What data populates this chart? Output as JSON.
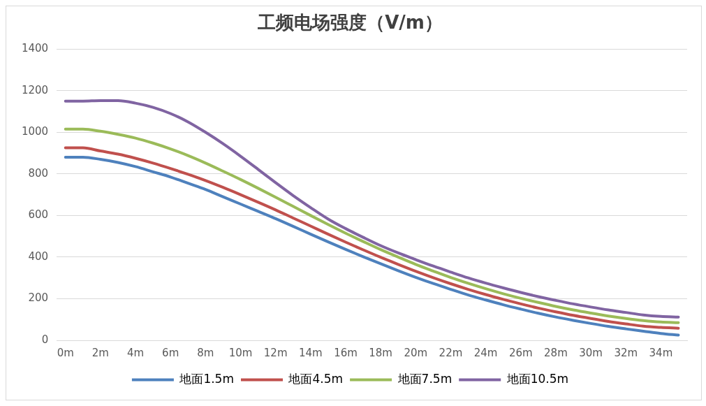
{
  "chart_data": {
    "type": "line",
    "title": "工频电场强度（V/m）",
    "categories": [
      "0m",
      null,
      "2m",
      null,
      "4m",
      null,
      "6m",
      null,
      "8m",
      null,
      "10m",
      null,
      "12m",
      null,
      "14m",
      null,
      "16m",
      null,
      "18m",
      null,
      "20m",
      null,
      "22m",
      null,
      "24m",
      null,
      "26m",
      null,
      "28m",
      null,
      "30m",
      null,
      "32m",
      null,
      "34m",
      null
    ],
    "series": [
      {
        "name": "地面1.5m",
        "color": "#4e81bd",
        "values": [
          880,
          880,
          870,
          855,
          835,
          810,
          785,
          755,
          725,
          690,
          655,
          620,
          585,
          548,
          510,
          473,
          437,
          402,
          368,
          335,
          303,
          273,
          245,
          218,
          194,
          171,
          150,
          130,
          112,
          96,
          81,
          67,
          55,
          44,
          33,
          25
        ]
      },
      {
        "name": "地面4.5m",
        "color": "#c0504d",
        "values": [
          925,
          925,
          910,
          895,
          875,
          852,
          826,
          798,
          768,
          735,
          700,
          664,
          627,
          588,
          549,
          510,
          472,
          435,
          399,
          365,
          332,
          301,
          272,
          245,
          220,
          197,
          175,
          155,
          137,
          120,
          105,
          91,
          79,
          68,
          62,
          58
        ]
      },
      {
        "name": "地面7.5m",
        "color": "#9bbb59",
        "values": [
          1015,
          1015,
          1005,
          990,
          972,
          948,
          920,
          888,
          852,
          813,
          773,
          731,
          688,
          644,
          600,
          557,
          515,
          475,
          436,
          400,
          365,
          333,
          302,
          274,
          248,
          224,
          202,
          182,
          163,
          146,
          131,
          117,
          105,
          95,
          88,
          85
        ]
      },
      {
        "name": "地面10.5m",
        "color": "#8064a2",
        "values": [
          1150,
          1150,
          1152,
          1152,
          1140,
          1120,
          1090,
          1050,
          1000,
          945,
          885,
          822,
          758,
          696,
          638,
          583,
          537,
          495,
          455,
          420,
          388,
          357,
          328,
          300,
          275,
          252,
          230,
          210,
          192,
          175,
          160,
          146,
          134,
          122,
          115,
          112
        ]
      }
    ],
    "ylim": [
      0,
      1400
    ],
    "yticks": [
      0,
      200,
      400,
      600,
      800,
      1000,
      1200,
      1400
    ],
    "grid": "y",
    "legend": "bottom",
    "marker": "none",
    "line_style": "solid"
  }
}
